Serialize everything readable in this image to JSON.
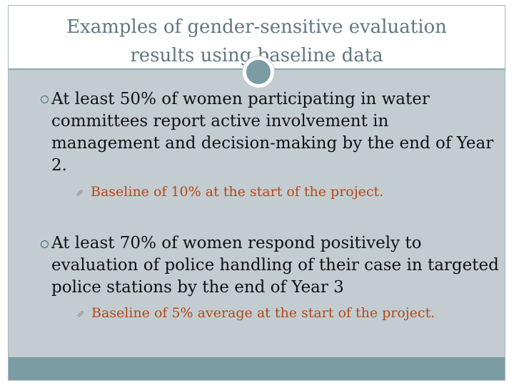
{
  "slide": {
    "title_line1": "Examples of gender-sensitive evaluation",
    "title_line2": "results using baseline data",
    "bullets": [
      {
        "text": "At least 50% of women participating in water committees report active involvement in management and decision-making by the end of Year 2.",
        "sub": "Baseline of 10% at the start of the project."
      },
      {
        "text": "At least 70% of women respond positively to evaluation of police handling of their case in targeted police stations by the end of Year 3",
        "sub": "Baseline of 5% average at the start of the project."
      }
    ],
    "icons": {
      "bullet": "ring-bullet-icon",
      "sub_bullet": "arrow-bullet-icon"
    },
    "colors": {
      "title": "#62777f",
      "content_bg": "#c3cdd1",
      "footer_bar": "#7c9ca4",
      "sub_text": "#b64614"
    }
  }
}
